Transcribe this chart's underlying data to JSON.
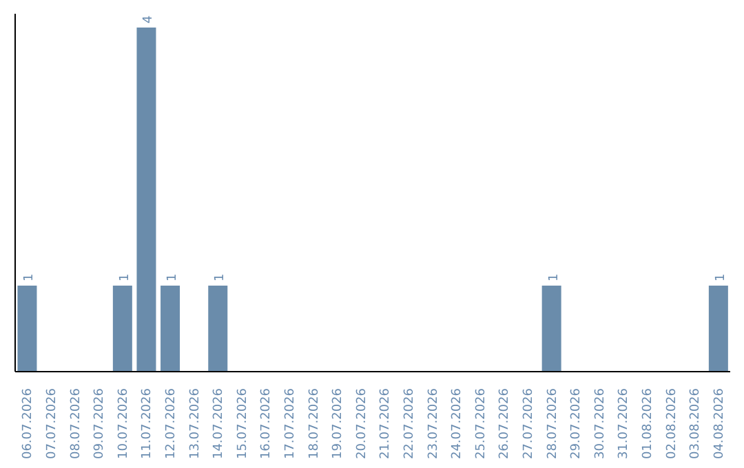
{
  "chart_data": {
    "type": "bar",
    "categories": [
      "06.07.2026",
      "07.07.2026",
      "08.07.2026",
      "09.07.2026",
      "10.07.2026",
      "11.07.2026",
      "12.07.2026",
      "13.07.2026",
      "14.07.2026",
      "15.07.2026",
      "16.07.2026",
      "17.07.2026",
      "18.07.2026",
      "19.07.2026",
      "20.07.2026",
      "21.07.2026",
      "22.07.2026",
      "23.07.2026",
      "24.07.2026",
      "25.07.2026",
      "26.07.2026",
      "27.07.2026",
      "28.07.2026",
      "29.07.2026",
      "30.07.2026",
      "31.07.2026",
      "01.08.2026",
      "02.08.2026",
      "03.08.2026",
      "04.08.2026"
    ],
    "values": [
      1,
      0,
      0,
      0,
      1,
      4,
      1,
      0,
      1,
      0,
      0,
      0,
      0,
      0,
      0,
      0,
      0,
      0,
      0,
      0,
      0,
      0,
      1,
      0,
      0,
      0,
      0,
      0,
      0,
      1
    ],
    "color": "#6a8cab",
    "value_labels": [
      "1",
      null,
      null,
      null,
      "1",
      "4",
      "1",
      null,
      "1",
      null,
      null,
      null,
      null,
      null,
      null,
      null,
      null,
      null,
      null,
      null,
      null,
      null,
      "1",
      null,
      null,
      null,
      null,
      null,
      null,
      "1"
    ],
    "grid": false,
    "legend": false,
    "tick_labels": "x"
  }
}
